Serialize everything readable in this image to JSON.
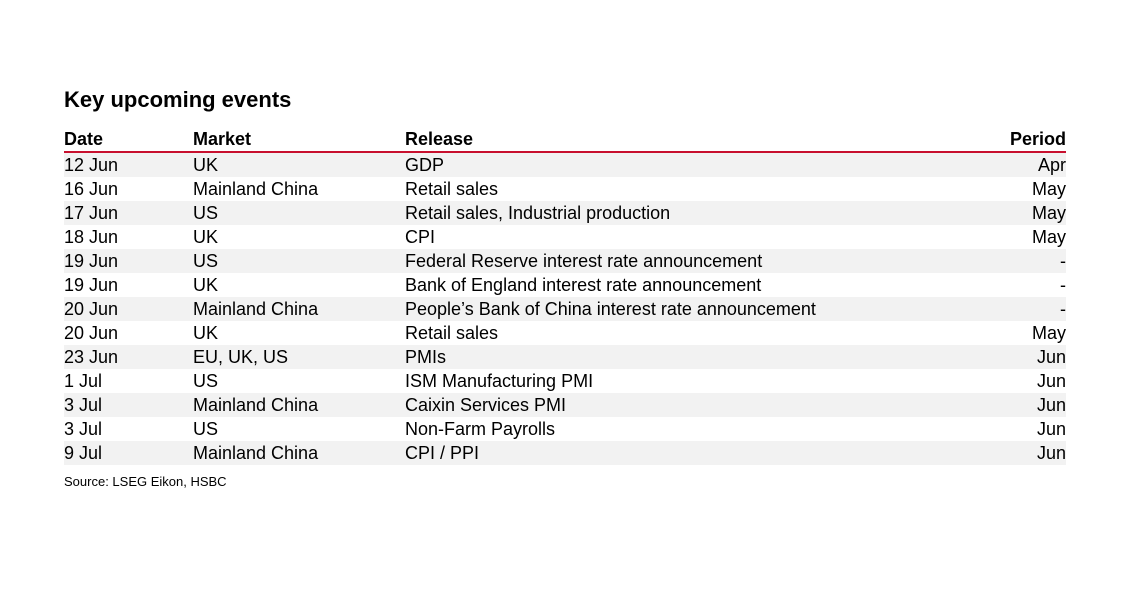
{
  "title": "Key upcoming events",
  "table": {
    "headers": {
      "date": "Date",
      "market": "Market",
      "release": "Release",
      "period": "Period"
    },
    "rows": [
      {
        "date": "12 Jun",
        "market": "UK",
        "release": "GDP",
        "period": "Apr"
      },
      {
        "date": "16 Jun",
        "market": "Mainland China",
        "release": "Retail sales",
        "period": "May"
      },
      {
        "date": "17 Jun",
        "market": "US",
        "release": "Retail sales, Industrial production",
        "period": "May"
      },
      {
        "date": "18 Jun",
        "market": "UK",
        "release": "CPI",
        "period": "May"
      },
      {
        "date": "19 Jun",
        "market": "US",
        "release": "Federal Reserve interest rate announcement",
        "period": "-"
      },
      {
        "date": "19 Jun",
        "market": "UK",
        "release": "Bank of England interest rate announcement",
        "period": "-"
      },
      {
        "date": "20 Jun",
        "market": "Mainland China",
        "release": "People’s Bank of China interest rate announcement",
        "period": "-"
      },
      {
        "date": "20 Jun",
        "market": "UK",
        "release": "Retail sales",
        "period": "May"
      },
      {
        "date": "23 Jun",
        "market": "EU, UK, US",
        "release": "PMIs",
        "period": "Jun"
      },
      {
        "date": "1 Jul",
        "market": "US",
        "release": "ISM Manufacturing PMI",
        "period": "Jun"
      },
      {
        "date": "3 Jul",
        "market": "Mainland China",
        "release": "Caixin Services PMI",
        "period": "Jun"
      },
      {
        "date": "3 Jul",
        "market": "US",
        "release": "Non-Farm Payrolls",
        "period": "Jun"
      },
      {
        "date": "9 Jul",
        "market": "Mainland China",
        "release": "CPI / PPI",
        "period": "Jun"
      }
    ]
  },
  "source": "Source: LSEG Eikon, HSBC",
  "colors": {
    "header_rule": "#c8102e",
    "stripe": "#f2f2f2"
  }
}
